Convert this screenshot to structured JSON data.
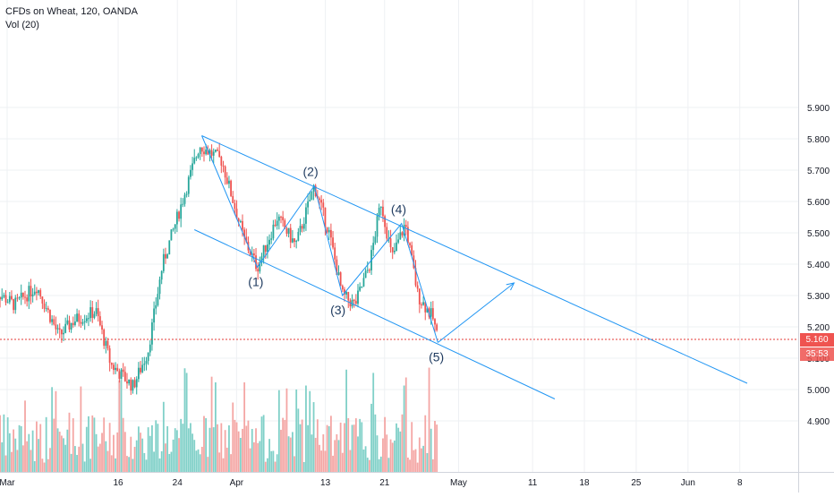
{
  "header": {
    "title": "CFDs on Wheat, 120, OANDA",
    "indicator": "Vol (20)"
  },
  "price_tag": {
    "price": "5.160",
    "countdown": "35:53"
  },
  "colors": {
    "up": "#26a69a",
    "down": "#ef5350",
    "up_volume": "#80d0c8",
    "down_volume": "#f4a6a4",
    "drawing": "#2196f3",
    "grid": "#eef0f3",
    "price_line": "#e53935",
    "axis_text": "#131722",
    "label_text": "#1e3a5f"
  },
  "chart_data": {
    "type": "candlestick",
    "title": "CFDs on Wheat, 120, OANDA",
    "xlabel": "",
    "ylabel": "",
    "grid": true,
    "ylim": [
      4.85,
      5.95
    ],
    "y_ticks": [
      "4.900",
      "5.000",
      "5.100",
      "5.200",
      "5.300",
      "5.400",
      "5.500",
      "5.600",
      "5.700",
      "5.800",
      "5.900"
    ],
    "x_ticks": [
      {
        "label": "Mar",
        "day": 0
      },
      {
        "label": "16",
        "day": 15
      },
      {
        "label": "24",
        "day": 23
      },
      {
        "label": "Apr",
        "day": 31
      },
      {
        "label": "13",
        "day": 43
      },
      {
        "label": "21",
        "day": 51
      },
      {
        "label": "May",
        "day": 61
      },
      {
        "label": "11",
        "day": 71
      },
      {
        "label": "18",
        "day": 78
      },
      {
        "label": "25",
        "day": 85
      },
      {
        "label": "Jun",
        "day": 92
      },
      {
        "label": "8",
        "day": 99
      }
    ],
    "series": [
      {
        "name": "price",
        "key_points": [
          {
            "day": -2,
            "price": 5.32
          },
          {
            "day": 1,
            "price": 5.27
          },
          {
            "day": 4,
            "price": 5.33
          },
          {
            "day": 7,
            "price": 5.17
          },
          {
            "day": 9,
            "price": 5.22
          },
          {
            "day": 12,
            "price": 5.25
          },
          {
            "day": 14,
            "price": 5.08
          },
          {
            "day": 17,
            "price": 5.01
          },
          {
            "day": 19,
            "price": 5.12
          },
          {
            "day": 21,
            "price": 5.4
          },
          {
            "day": 23,
            "price": 5.55
          },
          {
            "day": 26,
            "price": 5.78
          },
          {
            "day": 29,
            "price": 5.73
          },
          {
            "day": 32,
            "price": 5.48
          },
          {
            "day": 33.8,
            "price": 5.39
          },
          {
            "day": 36.5,
            "price": 5.55
          },
          {
            "day": 39,
            "price": 5.46
          },
          {
            "day": 41.5,
            "price": 5.65
          },
          {
            "day": 43.5,
            "price": 5.5
          },
          {
            "day": 45.3,
            "price": 5.3
          },
          {
            "day": 47,
            "price": 5.27
          },
          {
            "day": 49,
            "price": 5.4
          },
          {
            "day": 50.5,
            "price": 5.6
          },
          {
            "day": 52,
            "price": 5.42
          },
          {
            "day": 53.8,
            "price": 5.53
          },
          {
            "day": 55.5,
            "price": 5.3
          },
          {
            "day": 57.5,
            "price": 5.23
          },
          {
            "day": 58.2,
            "price": 5.16
          }
        ]
      }
    ],
    "volume": {
      "name": "Vol (20)",
      "max_relative": 1.0
    },
    "last_price": 5.16,
    "annotations": [
      {
        "type": "channel_upper",
        "from": {
          "day": 26.3,
          "price": 5.81
        },
        "to": {
          "day": 100,
          "price": 5.02
        }
      },
      {
        "type": "channel_lower",
        "from": {
          "day": 25.3,
          "price": 5.51
        },
        "to": {
          "day": 74,
          "price": 4.97
        }
      },
      {
        "type": "wave",
        "points": [
          {
            "day": 26.3,
            "price": 5.81
          },
          {
            "day": 33.8,
            "price": 5.39
          },
          {
            "day": 41.5,
            "price": 5.65
          },
          {
            "day": 45.3,
            "price": 5.3
          },
          {
            "day": 53.3,
            "price": 5.53
          },
          {
            "day": 58.2,
            "price": 5.15
          }
        ]
      },
      {
        "type": "projection",
        "from": {
          "day": 58.2,
          "price": 5.15
        },
        "to": {
          "day": 68.5,
          "price": 5.34
        }
      }
    ],
    "wave_labels": [
      {
        "text": "(1)",
        "day": 33.6,
        "price": 5.37,
        "pos": "below"
      },
      {
        "text": "(2)",
        "day": 41.0,
        "price": 5.67,
        "pos": "above"
      },
      {
        "text": "(3)",
        "day": 44.7,
        "price": 5.28,
        "pos": "below"
      },
      {
        "text": "(4)",
        "day": 52.9,
        "price": 5.55,
        "pos": "above"
      },
      {
        "text": "(5)",
        "day": 58.0,
        "price": 5.13,
        "pos": "below"
      }
    ]
  }
}
